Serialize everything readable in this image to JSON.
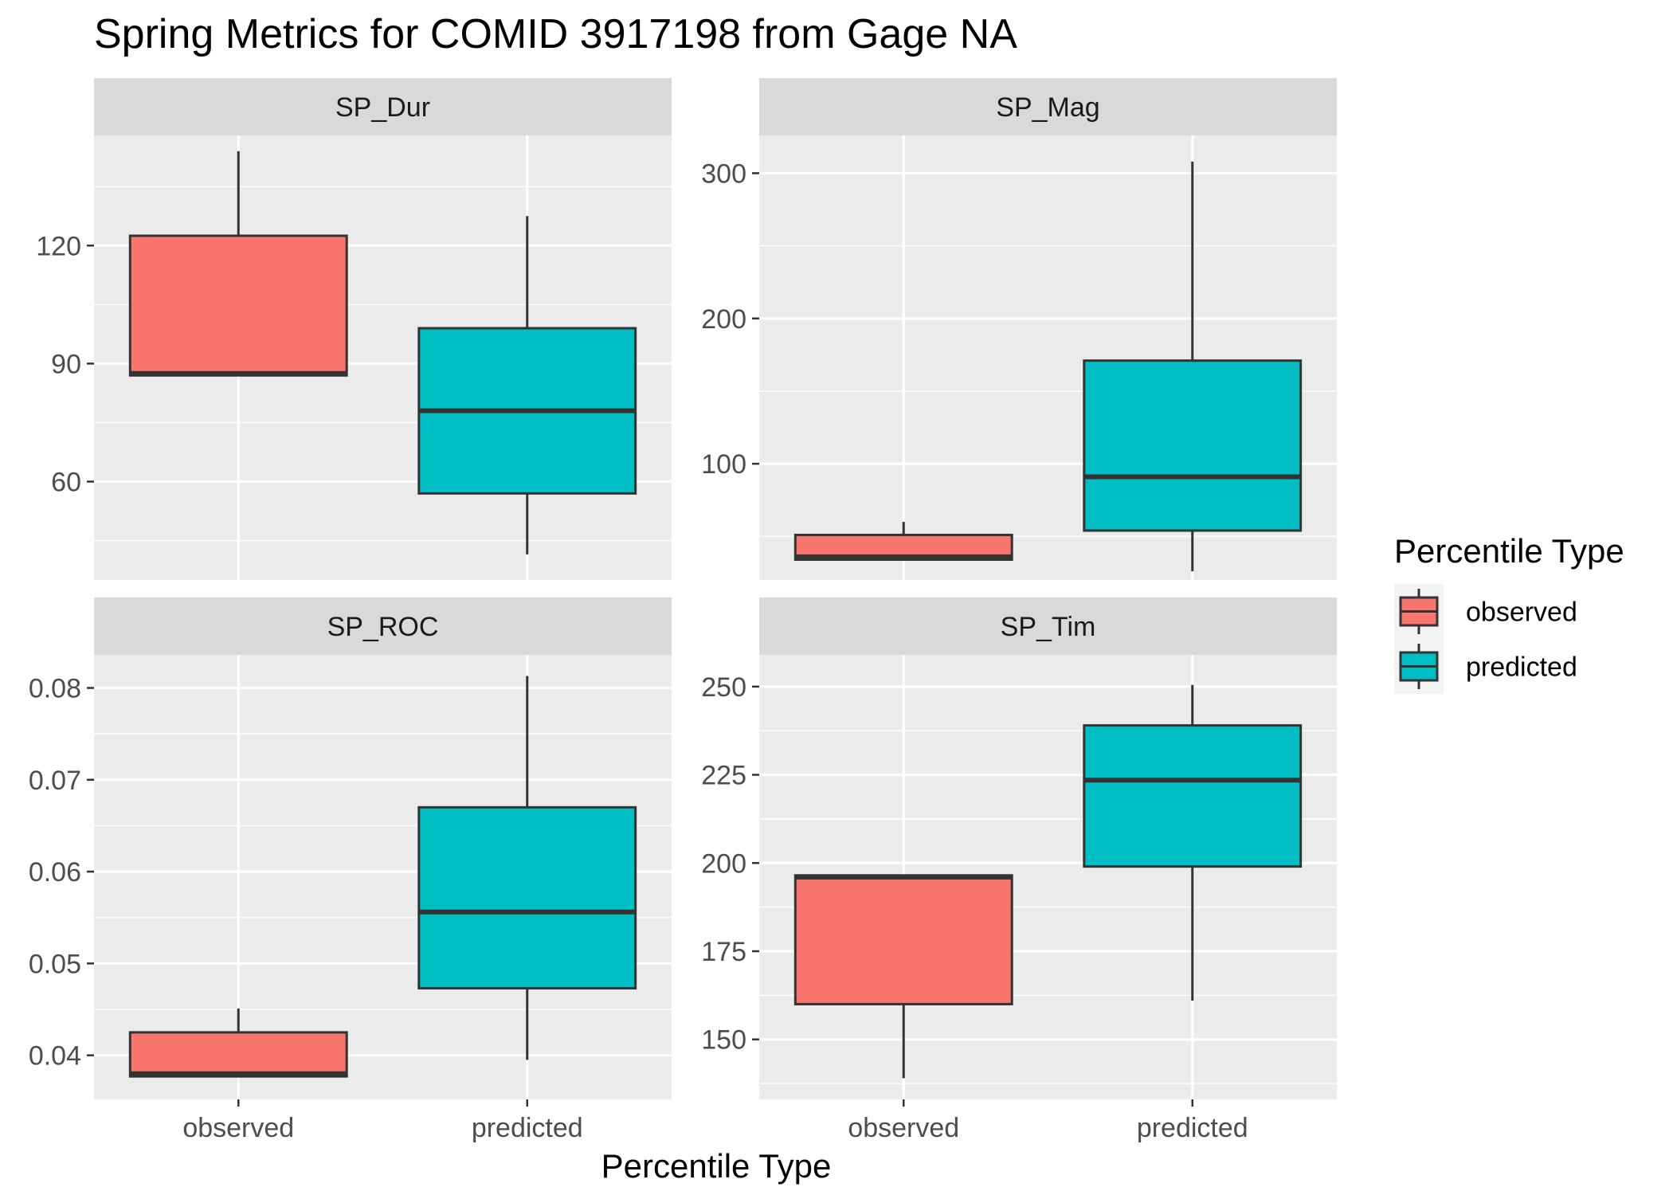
{
  "chart_data": {
    "type": "boxplot",
    "title": "Spring Metrics for COMID 3917198 from Gage NA",
    "xlabel": "Percentile Type",
    "categories": [
      "observed",
      "predicted"
    ],
    "legend": {
      "title": "Percentile Type",
      "placement": "right",
      "entries": [
        {
          "label": "observed",
          "color": "#F8766D"
        },
        {
          "label": "predicted",
          "color": "#00BFC4"
        }
      ]
    },
    "grid": true,
    "panel_background": "#EBEBEB",
    "strip_background": "#D9D9D9",
    "panels": [
      {
        "name": "SP_Dur",
        "ylim": [
          35,
          148
        ],
        "yticks": [
          60,
          90,
          120
        ],
        "yticklabels": [
          "60",
          "90",
          "120"
        ],
        "boxes": [
          {
            "category": "observed",
            "min": 87,
            "q1": 87,
            "median": 87.5,
            "q3": 122.5,
            "max": 144
          },
          {
            "category": "predicted",
            "min": 41.5,
            "q1": 57,
            "median": 78,
            "q3": 99,
            "max": 127.5
          }
        ]
      },
      {
        "name": "SP_Mag",
        "ylim": [
          20,
          326
        ],
        "yticks": [
          100,
          200,
          300
        ],
        "yticklabels": [
          "100",
          "200",
          "300"
        ],
        "boxes": [
          {
            "category": "observed",
            "min": 34,
            "q1": 34,
            "median": 36,
            "q3": 51,
            "max": 60
          },
          {
            "category": "predicted",
            "min": 26,
            "q1": 54,
            "median": 91,
            "q3": 171,
            "max": 308
          }
        ]
      },
      {
        "name": "SP_ROC",
        "ylim": [
          0.0352,
          0.0836
        ],
        "yticks": [
          0.04,
          0.05,
          0.06,
          0.07,
          0.08
        ],
        "yticklabels": [
          "0.04",
          "0.05",
          "0.06",
          "0.07",
          "0.08"
        ],
        "boxes": [
          {
            "category": "observed",
            "min": 0.0377,
            "q1": 0.0377,
            "median": 0.038,
            "q3": 0.0425,
            "max": 0.0451
          },
          {
            "category": "predicted",
            "min": 0.0395,
            "q1": 0.0473,
            "median": 0.0556,
            "q3": 0.067,
            "max": 0.0813
          }
        ]
      },
      {
        "name": "SP_Tim",
        "ylim": [
          133,
          259
        ],
        "yticks": [
          150,
          175,
          200,
          225,
          250
        ],
        "yticklabels": [
          "150",
          "175",
          "200",
          "225",
          "250"
        ],
        "boxes": [
          {
            "category": "observed",
            "min": 139,
            "q1": 160,
            "median": 196,
            "q3": 196.5,
            "max": 196.5
          },
          {
            "category": "predicted",
            "min": 161,
            "q1": 199,
            "median": 223.5,
            "q3": 239,
            "max": 250.5
          }
        ]
      }
    ]
  }
}
